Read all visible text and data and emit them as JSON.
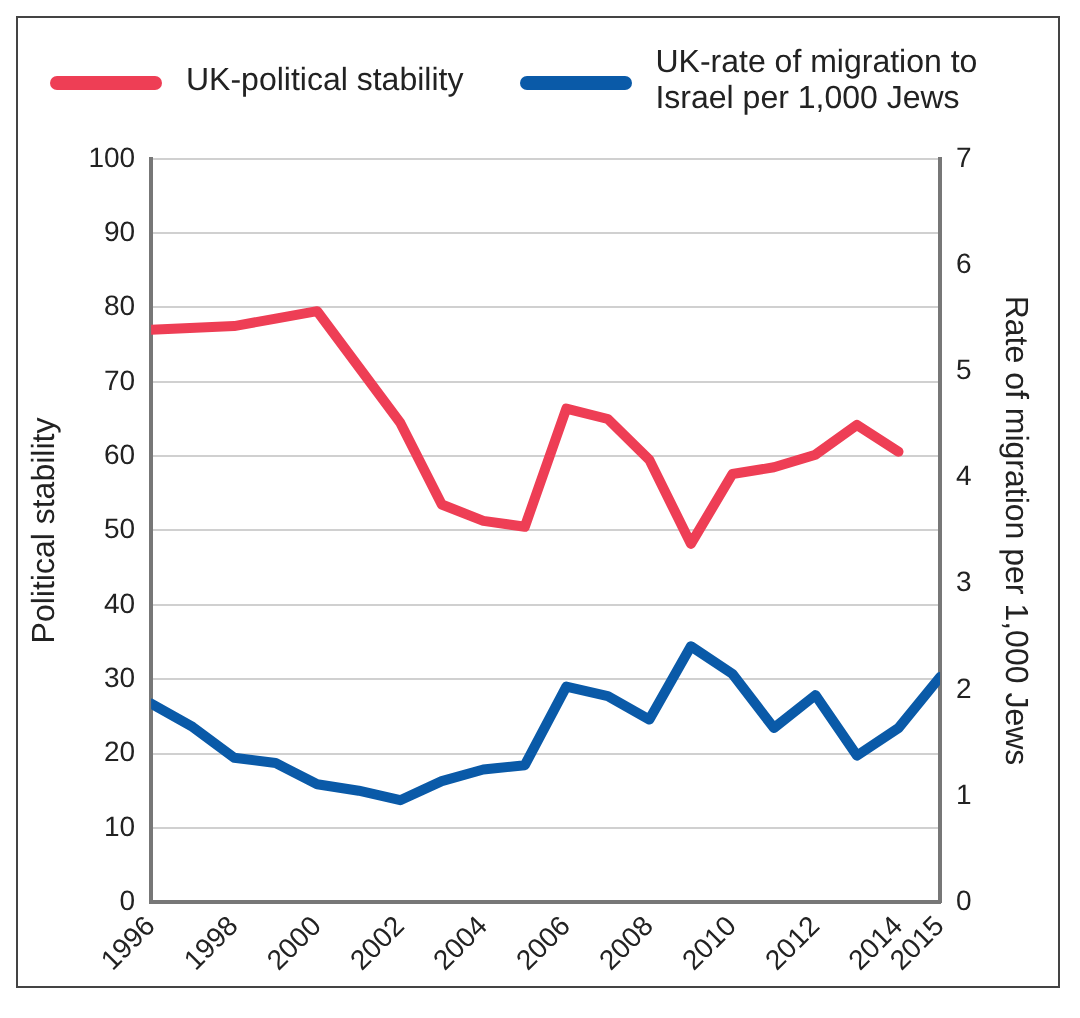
{
  "chart_data": {
    "type": "line",
    "ylabel": "Political stability",
    "y2label": "Rate of migration per 1,000 Jews",
    "ylim": [
      0,
      100
    ],
    "yticks": [
      0,
      10,
      20,
      30,
      40,
      50,
      60,
      70,
      80,
      90,
      100
    ],
    "y2lim": [
      0,
      7
    ],
    "y2ticks": [
      0,
      1,
      2,
      3,
      4,
      5,
      6,
      7
    ],
    "xlim": [
      1996,
      2015
    ],
    "xticks": [
      1996,
      1998,
      2000,
      2002,
      2004,
      2006,
      2008,
      2010,
      2012,
      2014,
      2015
    ],
    "grid": "y",
    "legend": "top",
    "marker": "none",
    "line_style": "solid",
    "series": [
      {
        "name": "UK-political stability",
        "color": "#ee3e55",
        "x": [
          1996,
          1998,
          1999,
          2000,
          2001,
          2002,
          2003,
          2004,
          2005,
          2006,
          2007,
          2008,
          2009,
          2010,
          2011,
          2012,
          2013,
          2014
        ],
        "values": [
          77,
          77.5,
          78.5,
          79.5,
          72,
          64.5,
          53.5,
          51.3,
          50.5,
          66.4,
          65,
          59.5,
          48.2,
          57.6,
          58.5,
          60.2,
          64.2,
          60.6
        ]
      },
      {
        "name": "UK-rate of migration to Israel per 1,000 Jews",
        "color": "#0a5aa8",
        "axis": "y2",
        "x": [
          1996,
          1997,
          1998,
          1999,
          2000,
          2001,
          2002,
          2003,
          2004,
          2005,
          2006,
          2007,
          2008,
          2009,
          2010,
          2011,
          2012,
          2013,
          2014,
          2015
        ],
        "values": [
          1.87,
          1.65,
          1.36,
          1.31,
          1.11,
          1.05,
          0.96,
          1.14,
          1.25,
          1.29,
          2.03,
          1.94,
          1.72,
          2.41,
          2.15,
          1.64,
          1.95,
          1.38,
          1.64,
          2.12
        ]
      }
    ]
  }
}
